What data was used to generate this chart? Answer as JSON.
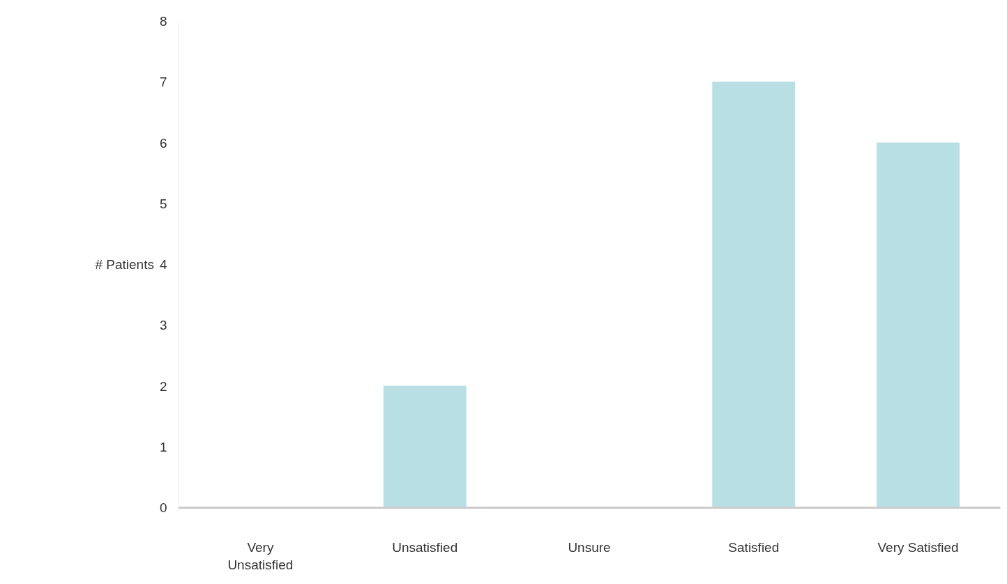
{
  "chart_data": {
    "type": "bar",
    "ylabel": "# Patients",
    "categories": [
      "Very Unsatisfied",
      "Unsatisfied",
      "Unsure",
      "Satisfied",
      "Very Satisfied"
    ],
    "values": [
      0,
      2,
      0,
      7,
      6
    ],
    "color": "#b8dfe3",
    "ylim": [
      0,
      8
    ],
    "yticks": [
      0,
      1,
      2,
      3,
      4,
      5,
      6,
      7,
      8
    ],
    "grid": false
  }
}
